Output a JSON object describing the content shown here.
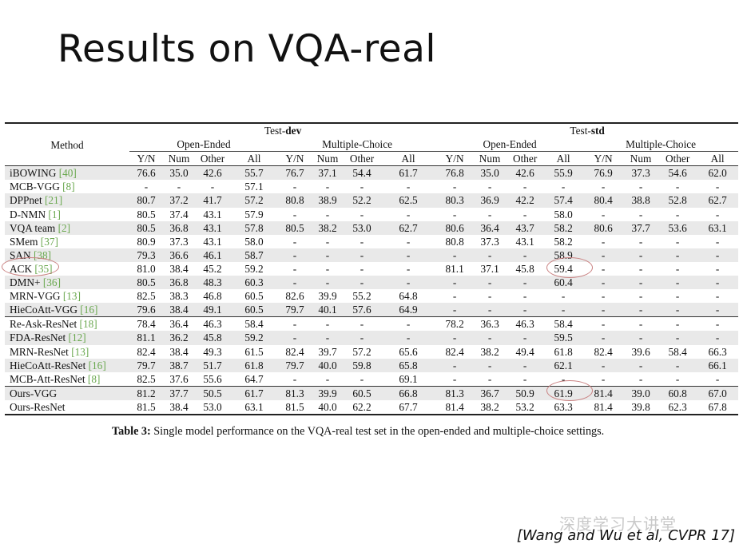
{
  "slide": {
    "title": "Results on VQA-real",
    "citation": "[Wang and Wu et al, CVPR 17]",
    "watermark": "深度学习大讲堂"
  },
  "table": {
    "method_header": "Method",
    "test_dev_prefix": "Test-",
    "test_dev_bold": "dev",
    "test_std_prefix": "Test-",
    "test_std_bold": "std",
    "open_ended": "Open-Ended",
    "multiple_choice": "Multiple-Choice",
    "sub_headers": [
      "Y/N",
      "Num",
      "Other",
      "All",
      "Y/N",
      "Num",
      "Other",
      "All",
      "Y/N",
      "Num",
      "Other",
      "All",
      "Y/N",
      "Num",
      "Other",
      "All"
    ],
    "rows": [
      {
        "method": "iBOWING",
        "ref": "[40]",
        "shade": true,
        "values": [
          "76.6",
          "35.0",
          "42.6",
          "55.7",
          "76.7",
          "37.1",
          "54.4",
          "61.7",
          "76.8",
          "35.0",
          "42.6",
          "55.9",
          "76.9",
          "37.3",
          "54.6",
          "62.0"
        ]
      },
      {
        "method": "MCB-VGG",
        "ref": "[8]",
        "shade": false,
        "values": [
          "-",
          "-",
          "-",
          "57.1",
          "-",
          "-",
          "-",
          "-",
          "-",
          "-",
          "-",
          "-",
          "-",
          "-",
          "-",
          "-"
        ]
      },
      {
        "method": "DPPnet",
        "ref": "[21]",
        "shade": true,
        "values": [
          "80.7",
          "37.2",
          "41.7",
          "57.2",
          "80.8",
          "38.9",
          "52.2",
          "62.5",
          "80.3",
          "36.9",
          "42.2",
          "57.4",
          "80.4",
          "38.8",
          "52.8",
          "62.7"
        ]
      },
      {
        "method": "D-NMN",
        "ref": "[1]",
        "shade": false,
        "values": [
          "80.5",
          "37.4",
          "43.1",
          "57.9",
          "-",
          "-",
          "-",
          "-",
          "-",
          "-",
          "-",
          "58.0",
          "-",
          "-",
          "-",
          "-"
        ]
      },
      {
        "method": "VQA team",
        "ref": "[2]",
        "shade": true,
        "values": [
          "80.5",
          "36.8",
          "43.1",
          "57.8",
          "80.5",
          "38.2",
          "53.0",
          "62.7",
          "80.6",
          "36.4",
          "43.7",
          "58.2",
          "80.6",
          "37.7",
          "53.6",
          "63.1"
        ]
      },
      {
        "method": "SMem",
        "ref": "[37]",
        "shade": false,
        "values": [
          "80.9",
          "37.3",
          "43.1",
          "58.0",
          "-",
          "-",
          "-",
          "-",
          "80.8",
          "37.3",
          "43.1",
          "58.2",
          "-",
          "-",
          "-",
          "-"
        ]
      },
      {
        "method": "SAN",
        "ref": "[38]",
        "shade": true,
        "values": [
          "79.3",
          "36.6",
          "46.1",
          "58.7",
          "-",
          "-",
          "-",
          "-",
          "-",
          "-",
          "-",
          "58.9",
          "-",
          "-",
          "-",
          "-"
        ]
      },
      {
        "method": "ACK",
        "ref": "[35]",
        "shade": false,
        "values": [
          "81.0",
          "38.4",
          "45.2",
          "59.2",
          "-",
          "-",
          "-",
          "-",
          "81.1",
          "37.1",
          "45.8",
          "59.4",
          "-",
          "-",
          "-",
          "-"
        ]
      },
      {
        "method": "DMN+",
        "ref": "[36]",
        "shade": true,
        "values": [
          "80.5",
          "36.8",
          "48.3",
          "60.3",
          "-",
          "-",
          "-",
          "-",
          "-",
          "-",
          "-",
          "60.4",
          "-",
          "-",
          "-",
          "-"
        ]
      },
      {
        "method": "MRN-VGG",
        "ref": "[13]",
        "shade": false,
        "values": [
          "82.5",
          "38.3",
          "46.8",
          "60.5",
          "82.6",
          "39.9",
          "55.2",
          "64.8",
          "-",
          "-",
          "-",
          "-",
          "-",
          "-",
          "-",
          "-"
        ]
      },
      {
        "method": "HieCoAtt-VGG",
        "ref": "[16]",
        "shade": true,
        "values": [
          "79.6",
          "38.4",
          "49.1",
          "60.5",
          "79.7",
          "40.1",
          "57.6",
          "64.9",
          "-",
          "-",
          "-",
          "-",
          "-",
          "-",
          "-",
          "-"
        ]
      },
      {
        "method": "Re-Ask-ResNet",
        "ref": "[18]",
        "shade": false,
        "midrule": true,
        "values": [
          "78.4",
          "36.4",
          "46.3",
          "58.4",
          "-",
          "-",
          "-",
          "-",
          "78.2",
          "36.3",
          "46.3",
          "58.4",
          "-",
          "-",
          "-",
          "-"
        ]
      },
      {
        "method": "FDA-ResNet",
        "ref": "[12]",
        "shade": true,
        "values": [
          "81.1",
          "36.2",
          "45.8",
          "59.2",
          "-",
          "-",
          "-",
          "-",
          "-",
          "-",
          "-",
          "59.5",
          "-",
          "-",
          "-",
          "-"
        ]
      },
      {
        "method": "MRN-ResNet",
        "ref": "[13]",
        "shade": false,
        "values": [
          "82.4",
          "38.4",
          "49.3",
          "61.5",
          "82.4",
          "39.7",
          "57.2",
          "65.6",
          "82.4",
          "38.2",
          "49.4",
          "61.8",
          "82.4",
          "39.6",
          "58.4",
          "66.3"
        ]
      },
      {
        "method": "HieCoAtt-ResNet",
        "ref": "[16]",
        "shade": true,
        "values": [
          "79.7",
          "38.7",
          "51.7",
          "61.8",
          "79.7",
          "40.0",
          "59.8",
          "65.8",
          "-",
          "-",
          "-",
          "62.1",
          "-",
          "-",
          "-",
          "66.1"
        ]
      },
      {
        "method": "MCB-Att-ResNet",
        "ref": "[8]",
        "shade": false,
        "values": [
          "82.5",
          "37.6",
          "55.6",
          "64.7",
          "-",
          "-",
          "-",
          "69.1",
          "-",
          "-",
          "-",
          "-",
          "-",
          "-",
          "-",
          "-"
        ]
      },
      {
        "method": "Ours-VGG",
        "ref": "",
        "shade": true,
        "midrule": true,
        "values": [
          "81.2",
          "37.7",
          "50.5",
          "61.7",
          "81.3",
          "39.9",
          "60.5",
          "66.8",
          "81.3",
          "36.7",
          "50.9",
          "61.9",
          "81.4",
          "39.0",
          "60.8",
          "67.0"
        ]
      },
      {
        "method": "Ours-ResNet",
        "ref": "",
        "shade": false,
        "values": [
          "81.5",
          "38.4",
          "53.0",
          "63.1",
          "81.5",
          "40.0",
          "62.2",
          "67.7",
          "81.4",
          "38.2",
          "53.2",
          "63.3",
          "81.4",
          "39.8",
          "62.3",
          "67.8"
        ]
      }
    ]
  },
  "caption": {
    "label": "Table 3:",
    "text": " Single model performance on the VQA-real test set in the open-ended and multiple-choice settings."
  }
}
